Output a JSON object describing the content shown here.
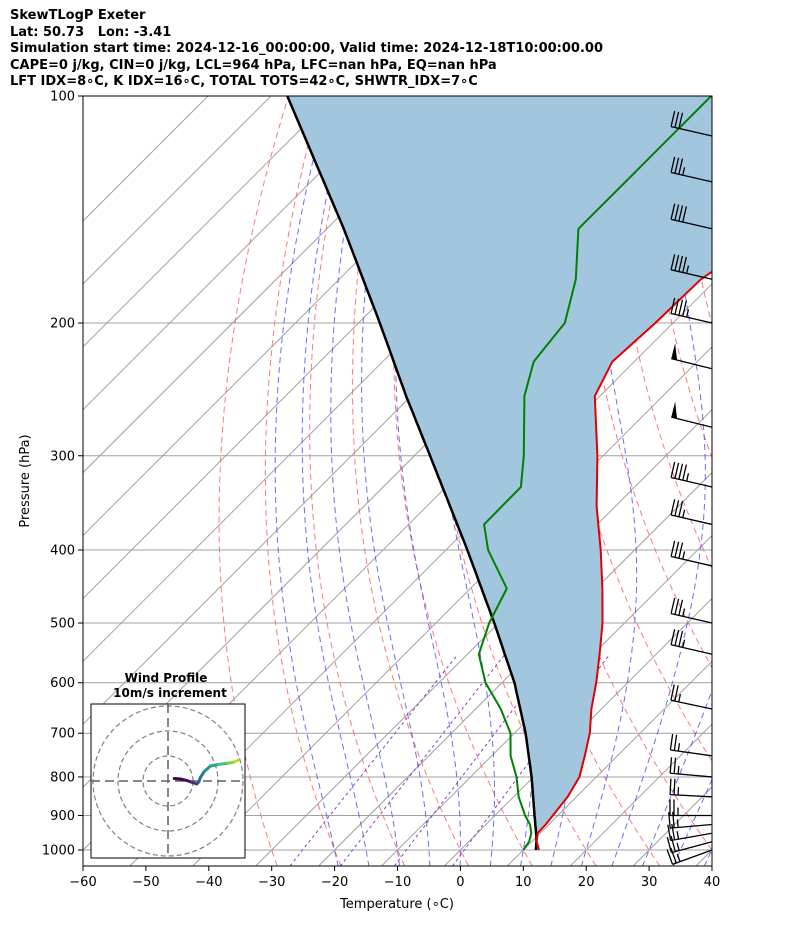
{
  "header": {
    "line1": "SkewTLogP Exeter",
    "line2": "Lat: 50.73   Lon: -3.41",
    "line3": "Simulation start time: 2024-12-16_00:00:00, Valid time: 2024-12-18T10:00:00.00",
    "line4": "CAPE=0 j/kg, CIN=0 j/kg, LCL=964 hPa, LFC=nan hPa, EQ=nan hPa",
    "line5": "LFT IDX=8∘C, K IDX=16∘C, TOTAL TOTS=42∘C, SHWTR_IDX=7∘C"
  },
  "chart_data": {
    "type": "line",
    "subtype": "skew-t log-p",
    "xlabel": "Temperature (∘C)",
    "ylabel": "Pressure (hPa)",
    "xlim": [
      -60,
      40
    ],
    "ylim": [
      1050,
      100
    ],
    "x_ticks": [
      -60,
      -50,
      -40,
      -30,
      -20,
      -10,
      0,
      10,
      20,
      30,
      40
    ],
    "x_tick_labels": [
      "−60",
      "−50",
      "−40",
      "−30",
      "−20",
      "−10",
      "0",
      "10",
      "20",
      "30",
      "40"
    ],
    "y_ticks": [
      1000,
      900,
      800,
      700,
      600,
      500,
      400,
      300,
      200,
      100
    ],
    "y_scale": "log",
    "grid": true,
    "colors": {
      "temperature": "#e00000",
      "dewpoint": "#008000",
      "parcel": "#000000",
      "shade": "#a3c6df",
      "dry_adiabats": "#ff6060",
      "moist_adiabats": "#5050ff",
      "mixing_ratio": "#8c3cc8",
      "isotherms": "#a0a0a0"
    },
    "temperature": {
      "p": [
        1000,
        975,
        950,
        925,
        900,
        850,
        800,
        750,
        700,
        650,
        600,
        550,
        500,
        450,
        400,
        350,
        300,
        250,
        225,
        200,
        175,
        150,
        125,
        100
      ],
      "t": [
        12.5,
        10.8,
        9.6,
        9.5,
        9.2,
        8.6,
        7.3,
        4.8,
        2.0,
        -1.6,
        -5.0,
        -9.0,
        -13.5,
        -19.0,
        -25.4,
        -33.0,
        -40.9,
        -50.8,
        -53.5,
        -52.8,
        -52.5,
        -48.8,
        -50.3,
        -52.0
      ]
    },
    "dewpoint": {
      "p": [
        1000,
        975,
        950,
        925,
        900,
        850,
        800,
        750,
        700,
        650,
        600,
        550,
        500,
        450,
        400,
        370,
        330,
        300,
        250,
        225,
        200,
        175,
        150,
        125,
        100
      ],
      "t": [
        10.0,
        9.6,
        8.6,
        7.0,
        4.8,
        0.8,
        -2.7,
        -7.0,
        -10.6,
        -16.0,
        -22.6,
        -28.2,
        -31.5,
        -34.2,
        -43.3,
        -48.0,
        -48.1,
        -52.6,
        -62.0,
        -66.0,
        -67.2,
        -72.4,
        -80.0,
        -80.0,
        -80.0
      ]
    },
    "parcel": {
      "p": [
        1000,
        964,
        900,
        850,
        800,
        700,
        600,
        500,
        400,
        300,
        250,
        200,
        150,
        100
      ],
      "t": [
        12.0,
        10.2,
        6.3,
        3.1,
        -0.3,
        -8.2,
        -18.0,
        -30.7,
        -46.6,
        -67.5,
        -80.8,
        -96.6,
        -117.3,
        -147.4
      ]
    },
    "wind_barbs": [
      {
        "p": 1000,
        "speed_kt": 25,
        "dir_deg": 250
      },
      {
        "p": 975,
        "speed_kt": 25,
        "dir_deg": 255
      },
      {
        "p": 950,
        "speed_kt": 25,
        "dir_deg": 260
      },
      {
        "p": 925,
        "speed_kt": 25,
        "dir_deg": 265
      },
      {
        "p": 900,
        "speed_kt": 25,
        "dir_deg": 270
      },
      {
        "p": 850,
        "speed_kt": 25,
        "dir_deg": 273
      },
      {
        "p": 800,
        "speed_kt": 25,
        "dir_deg": 275
      },
      {
        "p": 750,
        "speed_kt": 25,
        "dir_deg": 278
      },
      {
        "p": 650,
        "speed_kt": 25,
        "dir_deg": 282
      },
      {
        "p": 550,
        "speed_kt": 35,
        "dir_deg": 283
      },
      {
        "p": 500,
        "speed_kt": 35,
        "dir_deg": 283
      },
      {
        "p": 420,
        "speed_kt": 35,
        "dir_deg": 283
      },
      {
        "p": 370,
        "speed_kt": 35,
        "dir_deg": 283
      },
      {
        "p": 330,
        "speed_kt": 45,
        "dir_deg": 283
      },
      {
        "p": 275,
        "speed_kt": 50,
        "dir_deg": 284
      },
      {
        "p": 230,
        "speed_kt": 50,
        "dir_deg": 284
      },
      {
        "p": 200,
        "speed_kt": 45,
        "dir_deg": 283
      },
      {
        "p": 175,
        "speed_kt": 45,
        "dir_deg": 283
      },
      {
        "p": 150,
        "speed_kt": 40,
        "dir_deg": 283
      },
      {
        "p": 130,
        "speed_kt": 35,
        "dir_deg": 283
      },
      {
        "p": 113,
        "speed_kt": 30,
        "dir_deg": 283
      }
    ],
    "hodograph": {
      "title": "Wind Profile",
      "subtitle": "10m/s increment",
      "ring_step_ms": 10,
      "rings": 3,
      "u": [
        2.5,
        5.0,
        7.5,
        9.5,
        11.5,
        12.3,
        13.0,
        14.5,
        17.0,
        20.0,
        24.0,
        26.5,
        28.0
      ],
      "v": [
        1.0,
        0.8,
        0.2,
        -0.5,
        -1.2,
        -0.4,
        1.5,
        3.8,
        6.0,
        6.6,
        7.1,
        7.6,
        8.3
      ]
    }
  }
}
